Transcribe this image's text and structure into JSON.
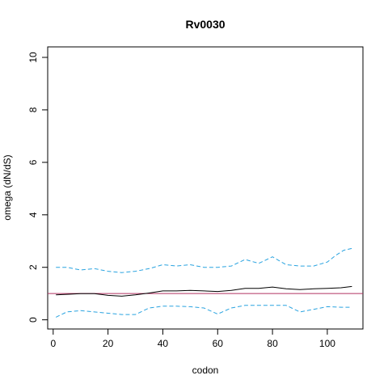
{
  "chart_data": {
    "type": "line",
    "title": "Rv0030",
    "xlabel": "codon",
    "ylabel": "omega (dN/dS)",
    "xlim": [
      -2,
      113
    ],
    "ylim": [
      -0.35,
      10.4
    ],
    "x_ticks": [
      0,
      20,
      40,
      60,
      80,
      100
    ],
    "y_ticks": [
      0,
      2,
      4,
      6,
      8,
      10
    ],
    "grid": false,
    "reference_line": {
      "y": 1,
      "color": "#b03060"
    },
    "colors": {
      "mean": "#000000",
      "bounds": "#29a3e0"
    },
    "series": [
      {
        "role": "mean",
        "style": "solid",
        "x": [
          1,
          5,
          10,
          15,
          20,
          25,
          30,
          35,
          40,
          45,
          50,
          55,
          60,
          65,
          70,
          75,
          80,
          85,
          90,
          95,
          100,
          105,
          109
        ],
        "y": [
          0.95,
          0.97,
          1.0,
          1.0,
          0.93,
          0.9,
          0.95,
          1.02,
          1.1,
          1.1,
          1.12,
          1.1,
          1.08,
          1.12,
          1.2,
          1.2,
          1.25,
          1.18,
          1.15,
          1.18,
          1.2,
          1.22,
          1.27
        ]
      },
      {
        "role": "upper",
        "style": "dashed",
        "x": [
          1,
          5,
          10,
          15,
          20,
          25,
          30,
          35,
          40,
          45,
          50,
          55,
          60,
          65,
          70,
          75,
          80,
          85,
          90,
          95,
          100,
          103,
          106,
          109
        ],
        "y": [
          2.0,
          2.0,
          1.9,
          1.95,
          1.85,
          1.8,
          1.85,
          1.95,
          2.1,
          2.05,
          2.1,
          2.0,
          2.0,
          2.05,
          2.3,
          2.15,
          2.4,
          2.1,
          2.05,
          2.05,
          2.2,
          2.45,
          2.65,
          2.72
        ]
      },
      {
        "role": "lower",
        "style": "dashed",
        "x": [
          1,
          5,
          10,
          15,
          20,
          25,
          30,
          35,
          40,
          45,
          50,
          55,
          60,
          65,
          70,
          75,
          80,
          85,
          90,
          95,
          100,
          105,
          109
        ],
        "y": [
          0.1,
          0.3,
          0.35,
          0.3,
          0.25,
          0.2,
          0.2,
          0.45,
          0.52,
          0.52,
          0.5,
          0.45,
          0.22,
          0.45,
          0.55,
          0.55,
          0.55,
          0.55,
          0.3,
          0.4,
          0.5,
          0.48,
          0.48
        ]
      }
    ]
  }
}
